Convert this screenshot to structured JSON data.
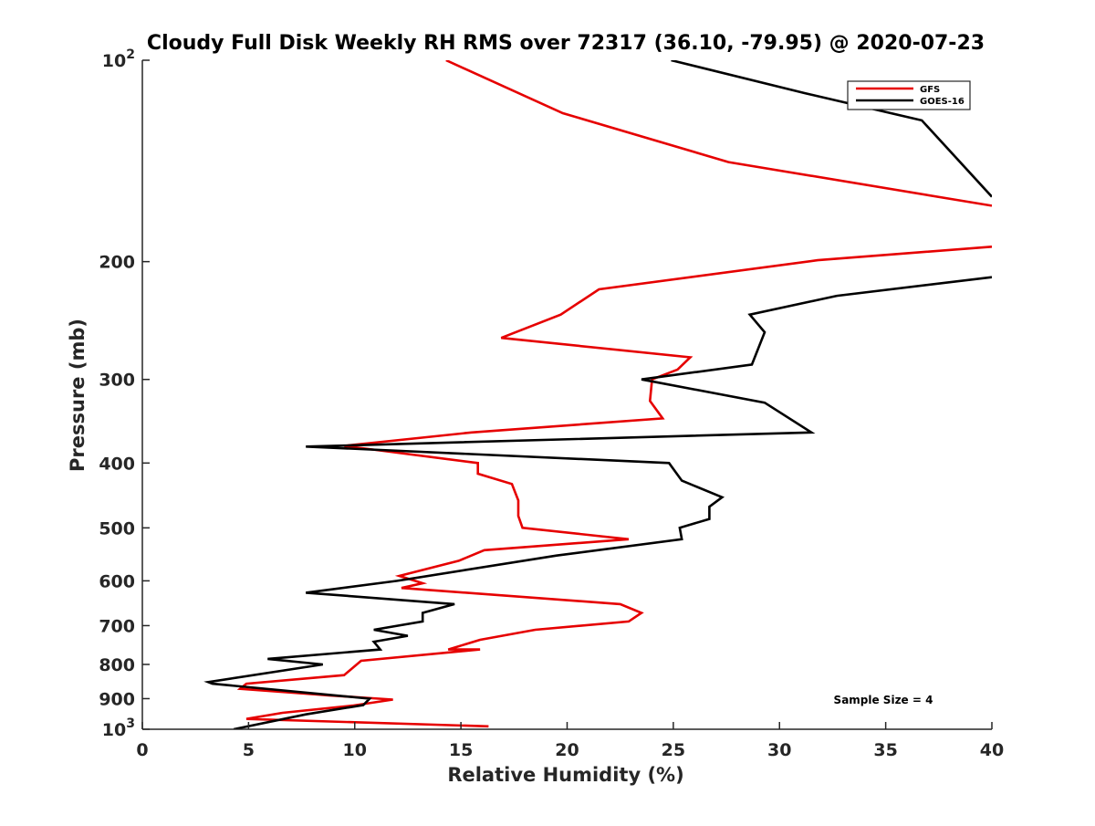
{
  "chart_data": {
    "type": "line",
    "title": "Cloudy Full Disk Weekly RH RMS over 72317 (36.10, -79.95) @ 2020-07-23",
    "xlabel": "Relative Humidity (%)",
    "ylabel": "Pressure (mb)",
    "xlim": [
      0,
      40
    ],
    "ylim": [
      100,
      1000
    ],
    "y_scale": "log",
    "y_reversed": true,
    "grid": false,
    "legend_position": "top-right",
    "x_ticks": [
      {
        "value": 0,
        "label": "0"
      },
      {
        "value": 5,
        "label": "5"
      },
      {
        "value": 10,
        "label": "10"
      },
      {
        "value": 15,
        "label": "15"
      },
      {
        "value": 20,
        "label": "20"
      },
      {
        "value": 25,
        "label": "25"
      },
      {
        "value": 30,
        "label": "30"
      },
      {
        "value": 35,
        "label": "35"
      },
      {
        "value": 40,
        "label": "40"
      }
    ],
    "y_ticks": [
      {
        "value": 100,
        "label": "10",
        "sup": "2"
      },
      {
        "value": 200,
        "label": "200"
      },
      {
        "value": 300,
        "label": "300"
      },
      {
        "value": 400,
        "label": "400"
      },
      {
        "value": 500,
        "label": "500"
      },
      {
        "value": 600,
        "label": "600"
      },
      {
        "value": 700,
        "label": "700"
      },
      {
        "value": 800,
        "label": "800"
      },
      {
        "value": 900,
        "label": "900"
      },
      {
        "value": 1000,
        "label": "10",
        "sup": "3"
      }
    ],
    "series": [
      {
        "name": "GFS",
        "color": "#e60000",
        "x": [
          14.3,
          19.8,
          27.6,
          40,
          null,
          40,
          31.8,
          21.5,
          19.7,
          16.9,
          25.8,
          25.2,
          24,
          23.9,
          24.5,
          15.5,
          9.5,
          15.8,
          15.8,
          17.4,
          17.7,
          17.7,
          17.9,
          22.9,
          16.1,
          14.9,
          12.1,
          13.2,
          12.2,
          22.5,
          23.5,
          22.9,
          18.5,
          15.9,
          14.4,
          15.9,
          10.3,
          9.5,
          4.9,
          4.6,
          8.8,
          11.8,
          9.9,
          6.6,
          4.9,
          16.3
        ],
        "y": [
          100,
          120,
          142,
          165,
          null,
          190,
          199,
          220,
          240,
          260,
          278,
          290,
          300,
          323,
          343,
          360,
          377,
          400,
          415,
          430,
          455,
          480,
          500,
          520,
          540,
          560,
          590,
          605,
          615,
          650,
          670,
          690,
          710,
          735,
          760,
          760,
          790,
          830,
          855,
          870,
          890,
          903,
          922,
          945,
          965,
          990
        ]
      },
      {
        "name": "GOES-16",
        "color": "#000000",
        "x": [
          24.9,
          31.2,
          36.7,
          40,
          null,
          40,
          32.7,
          28.6,
          29.3,
          28.7,
          23.5,
          29.3,
          31.5,
          7.7,
          24.8,
          25.4,
          27.3,
          26.7,
          26.7,
          25.3,
          25.4,
          19.5,
          12,
          7.7,
          14.7,
          13.2,
          13.2,
          10.9,
          12.5,
          10.9,
          11.2,
          5.9,
          8.5,
          3.1,
          3.3,
          10.7,
          10.4,
          7.7,
          4.3
        ],
        "y": [
          100,
          112,
          123,
          160,
          null,
          211,
          225,
          240,
          255,
          285,
          300,
          325,
          360,
          378,
          400,
          425,
          450,
          465,
          485,
          500,
          520,
          550,
          600,
          625,
          650,
          670,
          690,
          710,
          725,
          740,
          760,
          785,
          800,
          850,
          855,
          900,
          920,
          950,
          1000
        ]
      }
    ],
    "legend": [
      {
        "label": "GFS",
        "color": "#e60000"
      },
      {
        "label": "GOES-16",
        "color": "#000000"
      }
    ],
    "annotations": [
      {
        "text": "Sample Size = 4"
      }
    ]
  }
}
